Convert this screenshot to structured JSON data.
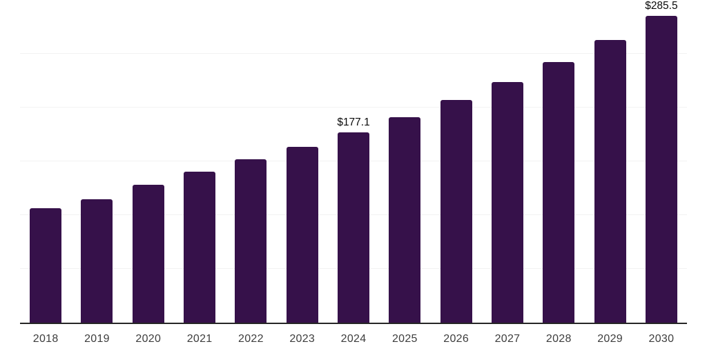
{
  "chart_style": {
    "background": "#ffffff",
    "bar_color": "#36114a",
    "axis_line_color": "#262626",
    "gridline_color": "#f2f2f2",
    "tick_label_color": "#3d3d3d",
    "data_label_color": "#0a0a0a"
  },
  "chart_data": {
    "type": "bar",
    "title": "",
    "xlabel": "",
    "ylabel": "",
    "categories": [
      "2018",
      "2019",
      "2020",
      "2021",
      "2022",
      "2023",
      "2024",
      "2025",
      "2026",
      "2027",
      "2028",
      "2029",
      "2030"
    ],
    "values": [
      106.5,
      115.0,
      128.0,
      140.5,
      152.0,
      163.5,
      177.1,
      191.0,
      207.0,
      223.5,
      242.5,
      263.0,
      285.5
    ],
    "data_labels": [
      "",
      "",
      "",
      "",
      "",
      "",
      "$177.1",
      "",
      "",
      "",
      "",
      "",
      "$285.5"
    ],
    "ylim": [
      0,
      300
    ],
    "gridline_step": 50,
    "grid": true,
    "legend": false,
    "y_axis_labels_visible": false
  }
}
